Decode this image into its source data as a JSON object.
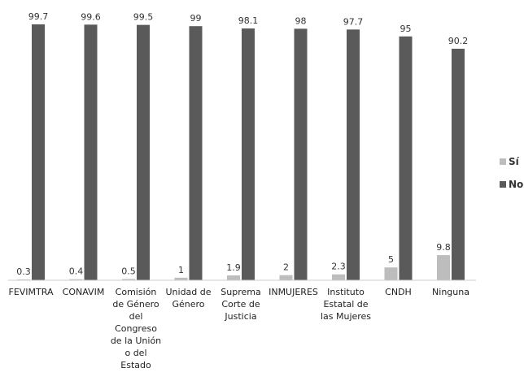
{
  "chart_data": {
    "type": "bar",
    "categories": [
      "FEVIMTRA",
      "CONAVIM",
      "Comisión de Género del Congreso de la Unión o del Estado",
      "Unidad de Género",
      "Suprema Corte de Justicia",
      "INMUJERES",
      "Instituto Estatal de las Mujeres",
      "CNDH",
      "Ninguna"
    ],
    "series": [
      {
        "name": "Sí",
        "color": "#bdbdbd",
        "values": [
          0.3,
          0.4,
          0.5,
          1,
          1.9,
          2,
          2.3,
          5,
          9.8
        ]
      },
      {
        "name": "No",
        "color": "#5a5a5a",
        "values": [
          99.7,
          99.6,
          99.5,
          99,
          98.1,
          98,
          97.7,
          95,
          90.2
        ]
      }
    ],
    "legend": "right"
  }
}
